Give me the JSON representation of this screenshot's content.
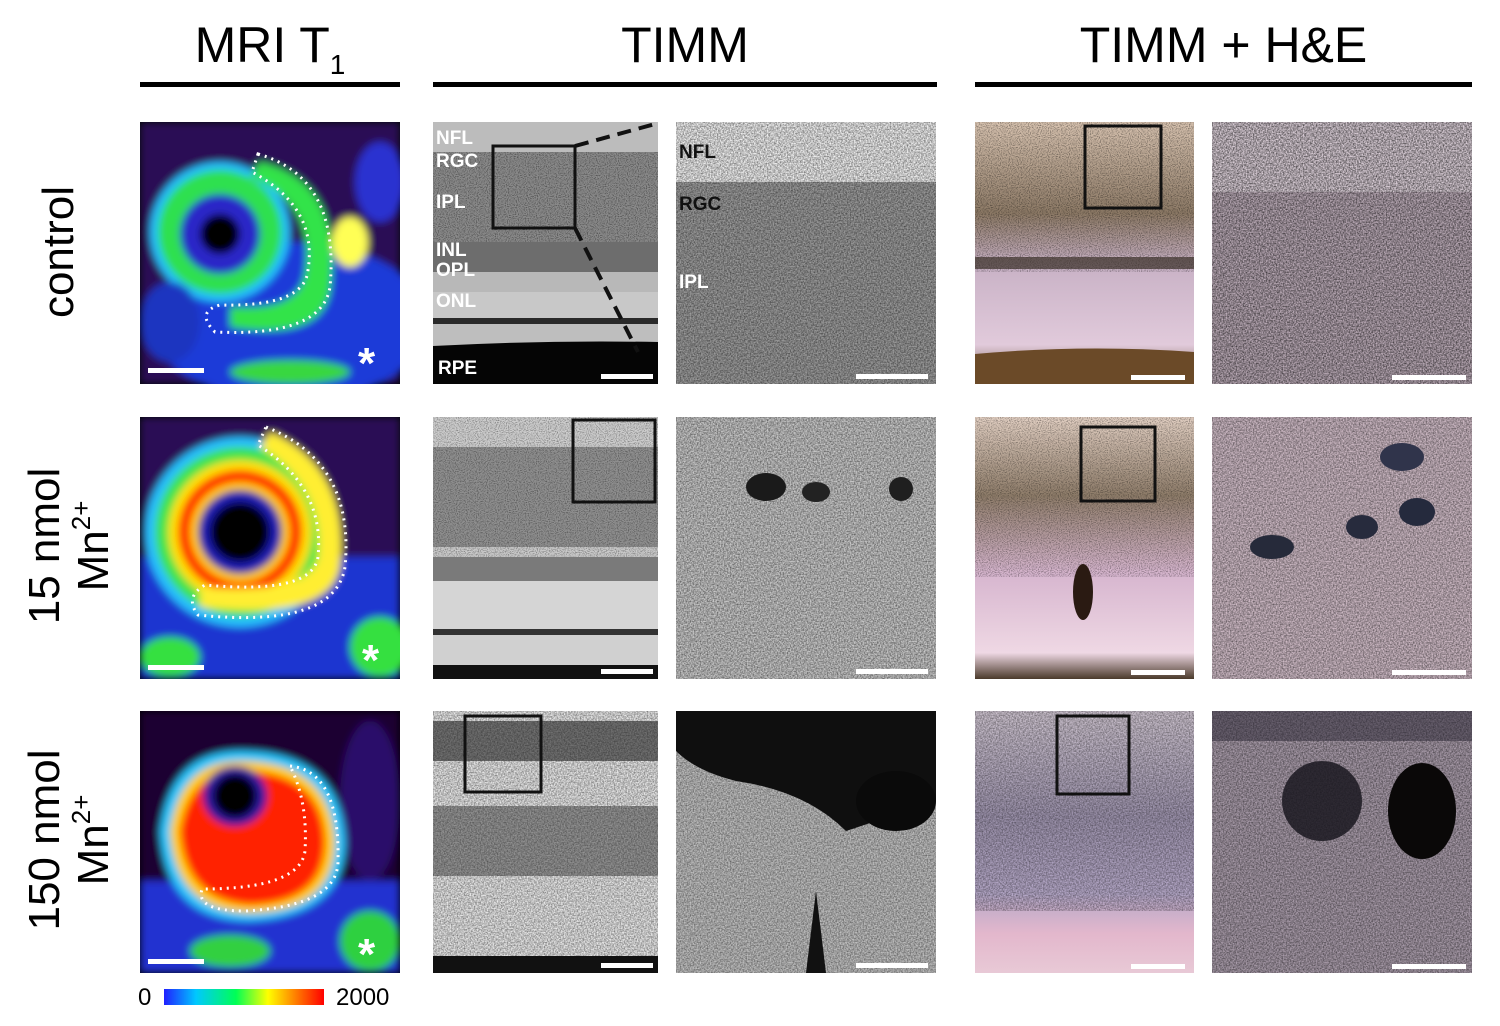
{
  "columns": {
    "mri": {
      "title": "MRI T",
      "subscript": "1"
    },
    "timm": {
      "title": "TIMM"
    },
    "timm_he": {
      "title": "TIMM + H&E"
    }
  },
  "rows": [
    {
      "label_line1": "control",
      "label_line2": "",
      "superscript": ""
    },
    {
      "label_line1": "15 nmol",
      "label_line2": "Mn",
      "superscript": "2+"
    },
    {
      "label_line1": "150 nmol",
      "label_line2": "Mn",
      "superscript": "2+"
    }
  ],
  "layer_labels": {
    "timm_overview": [
      "NFL",
      "RGC",
      "IPL",
      "INL",
      "OPL",
      "ONL",
      "RPE"
    ],
    "timm_zoom": [
      "NFL",
      "RGC",
      "IPL"
    ]
  },
  "asterisk": "*",
  "colorbar": {
    "min": "0",
    "max": "2000",
    "colors": [
      "#1a1aff",
      "#00ccff",
      "#00ff66",
      "#ffff00",
      "#ff6600",
      "#ff0000"
    ]
  },
  "colors": {
    "mri_ring_low": "#2bd94a",
    "mri_ring_high": "#ff1a00",
    "he_tint": "#d9b8c8"
  }
}
